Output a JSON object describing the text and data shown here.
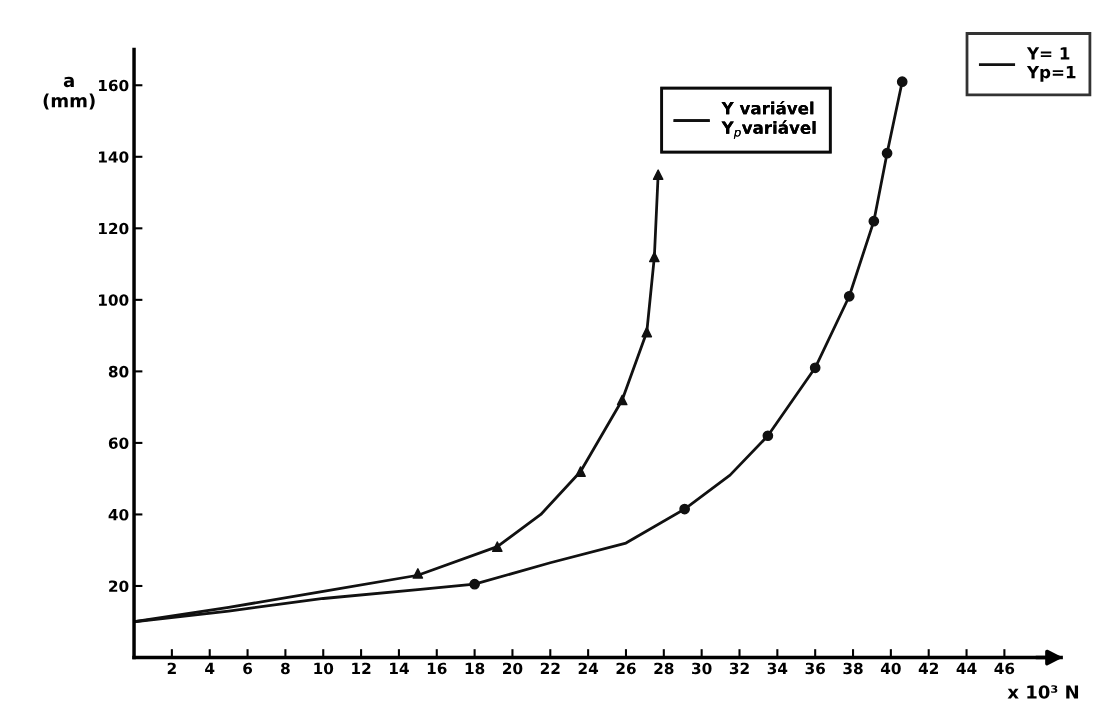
{
  "chart_data": {
    "type": "line",
    "xlabel": "x 10³ N",
    "ylabel": "a\n(mm)",
    "xlim": [
      0,
      49
    ],
    "ylim": [
      0,
      170
    ],
    "xticks": [
      2,
      4,
      6,
      8,
      10,
      12,
      14,
      16,
      18,
      20,
      22,
      24,
      26,
      28,
      30,
      32,
      34,
      36,
      38,
      40,
      42,
      44,
      46
    ],
    "yticks": [
      20,
      40,
      60,
      80,
      100,
      120,
      140,
      160
    ],
    "grid": false,
    "legend": "top right",
    "series": [
      {
        "name": "Y variável\nY$_{p}$variável",
        "color": "#111111",
        "marker": "none",
        "x": [
          0,
          5,
          10,
          15,
          19.2,
          21.5,
          23.6,
          25.8,
          27.1,
          27.5,
          27.7
        ],
        "values": [
          10,
          14,
          18.5,
          23,
          31,
          40,
          52,
          72,
          91,
          112,
          135
        ]
      },
      {
        "type": "scatter",
        "color": "#111111",
        "marker": "triangle",
        "x": [
          15,
          19.2,
          23.6,
          25.8,
          27.1,
          27.5,
          27.7
        ],
        "values": [
          23.5,
          31,
          52,
          72,
          91,
          112,
          135
        ]
      },
      {
        "name": "Y= 1\nYp=1",
        "color": "#111111",
        "marker": "none",
        "x": [
          0,
          5,
          10,
          15,
          18,
          22,
          26,
          29.1,
          31.5,
          33.5,
          36,
          37.8,
          39.1,
          39.8,
          40.6
        ],
        "values": [
          10,
          13,
          16.5,
          19,
          20.5,
          26.5,
          32,
          41.5,
          51,
          62,
          81,
          101,
          122,
          141,
          161
        ]
      },
      {
        "type": "scatter",
        "color": "#111111",
        "marker": "circle",
        "x": [
          18,
          29.1,
          33.5,
          36,
          37.8,
          39.1,
          39.8,
          40.6
        ],
        "values": [
          20.5,
          41.5,
          62,
          81,
          101,
          122,
          141,
          161
        ]
      }
    ]
  }
}
